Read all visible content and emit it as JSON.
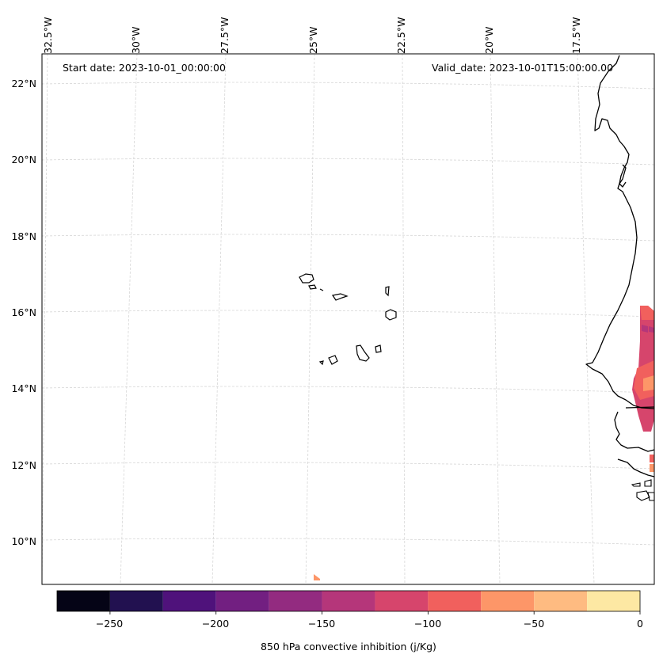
{
  "map": {
    "start_label": "Start date: 2023-10-01_00:00:00",
    "valid_label": "Valid_date: 2023-10-01T15:00:00.00",
    "lon_labels": [
      "32.5°W",
      "30°W",
      "27.5°W",
      "25°W",
      "22.5°W",
      "20°W",
      "17.5°W"
    ],
    "lat_labels": [
      "22°N",
      "20°N",
      "18°N",
      "16°N",
      "14°N",
      "12°N",
      "10°N"
    ],
    "variable": "850 hPa convective inhibition",
    "units": "j/Kg"
  },
  "colorbar": {
    "label": "850 hPa convective inhibition (j/Kg)",
    "ticks": [
      "−250",
      "−200",
      "−150",
      "−100",
      "−50",
      "0"
    ],
    "levels": [
      -275,
      -250,
      -225,
      -200,
      -175,
      -150,
      -125,
      -100,
      -75,
      -50,
      -25,
      0
    ],
    "colors": [
      "#050416",
      "#221150",
      "#4f127b",
      "#721f81",
      "#932b80",
      "#b5367a",
      "#d6456c",
      "#f1605d",
      "#fd9668",
      "#febb81",
      "#fde8a3"
    ]
  },
  "colors": {
    "coastline": "#000000",
    "gridline": "#cccccc",
    "frame": "#000000"
  }
}
